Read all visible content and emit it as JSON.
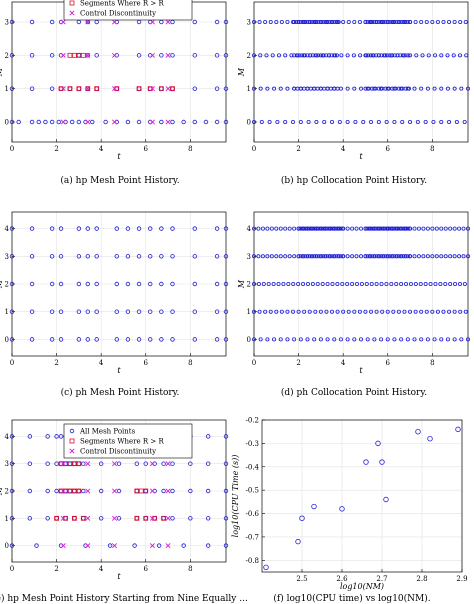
{
  "legend_labels": {
    "all_mesh": "All Mesh Points",
    "segments": "Segments Where R > R",
    "control": "Control Discontinuity"
  },
  "captions": {
    "a": "(a) hp Mesh Point History.",
    "b": "(b) hp Collocation Point History.",
    "c": "(c) ph Mesh Point History.",
    "d": "(d) ph Collocation Point History.",
    "e": "(e) hp Mesh Point History Starting from Nine Equally ...",
    "f": "(f) log10(CPU time) vs log10(NM)."
  },
  "colors": {
    "mesh": "#1f1fd6",
    "segment": "#e0102e",
    "control": "#d01ad0"
  },
  "chart_data": [
    {
      "id": "a",
      "type": "scatter",
      "xlabel": "t",
      "ylabel": "M",
      "xlim": [
        0,
        9.6
      ],
      "ylim": [
        -0.6,
        3.6
      ],
      "xticks": [
        0,
        2,
        4,
        6,
        8
      ],
      "yticks": [
        0,
        1,
        2,
        3
      ],
      "mesh": [
        [
          0.0,
          0.3,
          0.9,
          1.2,
          1.5,
          1.8,
          2.1,
          2.4,
          2.7,
          3.0,
          3.3,
          3.6,
          4.2,
          4.7,
          5.2,
          5.7,
          6.2,
          6.7,
          7.2,
          7.7,
          8.2,
          8.7,
          9.2,
          9.6
        ],
        [
          0.0,
          0.9,
          1.8,
          2.2,
          2.6,
          3.0,
          3.4,
          3.8,
          4.7,
          5.7,
          6.2,
          6.7,
          7.2,
          8.2,
          9.2,
          9.6
        ],
        [
          0.0,
          0.9,
          1.8,
          2.2,
          3.0,
          3.4,
          3.8,
          4.7,
          5.7,
          6.2,
          6.7,
          7.2,
          8.2,
          9.2,
          9.6
        ],
        [
          0.0,
          0.9,
          1.8,
          2.2,
          3.0,
          3.4,
          3.8,
          4.7,
          5.7,
          6.2,
          6.7,
          7.2,
          8.2,
          9.2,
          9.6
        ]
      ],
      "segments": [
        [],
        [
          2.2,
          2.6,
          3.0,
          3.4,
          3.8,
          4.7,
          5.7,
          6.2,
          6.7,
          7.2
        ],
        [
          2.6,
          2.8,
          3.0,
          3.2
        ],
        []
      ],
      "control": [
        [
          2.3,
          3.4,
          4.6,
          6.3,
          7.0
        ],
        [
          2.3,
          3.4,
          4.6,
          6.3,
          7.0
        ],
        [
          2.3,
          3.4,
          4.6,
          6.3,
          7.0
        ],
        [
          2.3,
          3.4,
          4.6,
          6.3,
          7.0
        ]
      ]
    },
    {
      "id": "b",
      "type": "scatter",
      "xlabel": "t",
      "ylabel": "M",
      "xlim": [
        0,
        9.6
      ],
      "ylim": [
        -0.6,
        3.6
      ],
      "xticks": [
        0,
        2,
        4,
        6,
        8
      ],
      "yticks": [
        0,
        1,
        2,
        3
      ],
      "dense": [
        {
          "y": 0,
          "ranges": [
            [
              0,
              9.6,
              0.35
            ]
          ]
        },
        {
          "y": 1,
          "ranges": [
            [
              0,
              9.6,
              0.3
            ],
            [
              1.8,
              3.8,
              0.15
            ],
            [
              5.0,
              7.0,
              0.15
            ]
          ]
        },
        {
          "y": 2,
          "ranges": [
            [
              0,
              9.6,
              0.28
            ],
            [
              1.8,
              3.8,
              0.12
            ],
            [
              5.0,
              7.0,
              0.12
            ]
          ]
        },
        {
          "y": 3,
          "ranges": [
            [
              0,
              9.6,
              0.25
            ],
            [
              1.8,
              3.8,
              0.1
            ],
            [
              5.0,
              7.0,
              0.1
            ]
          ]
        }
      ]
    },
    {
      "id": "c",
      "type": "scatter",
      "xlabel": "t",
      "ylabel": "M",
      "xlim": [
        0,
        9.6
      ],
      "ylim": [
        -0.6,
        4.6
      ],
      "xticks": [
        0,
        2,
        4,
        6,
        8
      ],
      "yticks": [
        0,
        1,
        2,
        3,
        4
      ],
      "mesh": [
        [
          0,
          0.9,
          1.8,
          2.2,
          3.0,
          3.4,
          3.8,
          4.7,
          5.2,
          5.7,
          6.2,
          6.7,
          7.2,
          8.2,
          9.2,
          9.6
        ],
        [
          0,
          0.9,
          1.8,
          2.2,
          3.0,
          3.4,
          3.8,
          4.7,
          5.2,
          5.7,
          6.2,
          6.7,
          7.2,
          8.2,
          9.2,
          9.6
        ],
        [
          0,
          0.9,
          1.8,
          2.2,
          3.0,
          3.4,
          3.8,
          4.7,
          5.2,
          5.7,
          6.2,
          6.7,
          7.2,
          8.2,
          9.2,
          9.6
        ],
        [
          0,
          0.9,
          1.8,
          2.2,
          3.0,
          3.4,
          3.8,
          4.7,
          5.2,
          5.7,
          6.2,
          6.7,
          7.2,
          8.2,
          9.2,
          9.6
        ],
        [
          0,
          0.9,
          1.8,
          2.2,
          3.0,
          3.4,
          3.8,
          4.7,
          5.2,
          5.7,
          6.2,
          6.7,
          7.2,
          8.2,
          9.2,
          9.6
        ]
      ]
    },
    {
      "id": "d",
      "type": "scatter",
      "xlabel": "t",
      "ylabel": "M",
      "xlim": [
        0,
        9.6
      ],
      "ylim": [
        -0.6,
        4.6
      ],
      "xticks": [
        0,
        2,
        4,
        6,
        8
      ],
      "yticks": [
        0,
        1,
        2,
        3,
        4
      ],
      "dense": [
        {
          "y": 0,
          "ranges": [
            [
              0,
              9.6,
              0.3
            ]
          ]
        },
        {
          "y": 1,
          "ranges": [
            [
              0,
              9.6,
              0.25
            ]
          ]
        },
        {
          "y": 2,
          "ranges": [
            [
              0,
              9.6,
              0.22
            ]
          ]
        },
        {
          "y": 3,
          "ranges": [
            [
              0,
              9.6,
              0.2
            ],
            [
              2.0,
              4.0,
              0.1
            ],
            [
              5.0,
              7.0,
              0.1
            ]
          ]
        },
        {
          "y": 4,
          "ranges": [
            [
              0,
              9.6,
              0.2
            ],
            [
              2.0,
              4.0,
              0.08
            ],
            [
              5.0,
              7.0,
              0.08
            ]
          ]
        }
      ]
    },
    {
      "id": "e",
      "type": "scatter",
      "xlabel": "t",
      "ylabel": "M",
      "xlim": [
        0,
        9.6
      ],
      "ylim": [
        -0.6,
        4.6
      ],
      "xticks": [
        0,
        2,
        4,
        6,
        8
      ],
      "yticks": [
        0,
        1,
        2,
        3,
        4
      ],
      "mesh": [
        [
          0,
          1.1,
          2.2,
          3.3,
          4.4,
          5.5,
          6.6,
          7.7,
          8.8,
          9.6
        ],
        [
          0,
          0.8,
          1.6,
          2.0,
          2.4,
          2.8,
          3.2,
          4.0,
          4.8,
          5.6,
          6.0,
          6.4,
          6.8,
          7.2,
          8.0,
          8.8,
          9.6
        ],
        [
          0,
          0.8,
          1.6,
          2.0,
          2.2,
          2.4,
          2.6,
          2.8,
          3.0,
          3.2,
          4.0,
          4.8,
          5.6,
          6.0,
          6.4,
          6.8,
          7.2,
          8.0,
          8.8,
          9.6
        ],
        [
          0,
          0.8,
          1.6,
          2.0,
          2.2,
          2.4,
          2.6,
          2.8,
          3.0,
          3.2,
          4.0,
          4.8,
          5.6,
          6.0,
          6.4,
          6.8,
          7.2,
          8.0,
          8.8,
          9.6
        ],
        [
          0,
          0.8,
          1.6,
          2.0,
          2.2,
          2.4,
          2.6,
          2.8,
          3.0,
          3.2,
          3.4,
          4.0,
          4.8,
          5.6,
          6.0,
          6.4,
          6.8,
          7.2,
          8.0,
          8.8,
          9.6
        ]
      ],
      "segments": [
        [],
        [
          2.0,
          2.4,
          2.8,
          3.2,
          5.6,
          6.0,
          6.4,
          6.8
        ],
        [
          2.2,
          2.4,
          2.6,
          2.8,
          3.0,
          5.6,
          5.8,
          6.0
        ],
        [
          2.2,
          2.4,
          2.6,
          2.8,
          3.0
        ],
        []
      ],
      "control": [
        [
          2.3,
          3.4,
          4.6,
          6.3,
          7.0
        ],
        [
          2.3,
          3.4,
          4.6,
          6.3,
          7.0
        ],
        [
          2.3,
          3.4,
          4.6,
          6.3,
          7.0
        ],
        [
          2.3,
          3.4,
          4.6,
          6.3,
          7.0
        ],
        []
      ]
    },
    {
      "id": "f",
      "type": "scatter",
      "xlabel": "log10(NM)",
      "ylabel": "log10(CPU Time (s))",
      "xlim": [
        2.4,
        2.9
      ],
      "ylim": [
        -0.85,
        -0.2
      ],
      "xticks": [
        2.5,
        2.6,
        2.7,
        2.8,
        2.9
      ],
      "yticks": [
        -0.8,
        -0.7,
        -0.6,
        -0.5,
        -0.4,
        -0.3,
        -0.2
      ],
      "points": [
        [
          2.41,
          -0.83
        ],
        [
          2.49,
          -0.72
        ],
        [
          2.5,
          -0.62
        ],
        [
          2.53,
          -0.57
        ],
        [
          2.6,
          -0.58
        ],
        [
          2.66,
          -0.38
        ],
        [
          2.69,
          -0.3
        ],
        [
          2.7,
          -0.38
        ],
        [
          2.71,
          -0.54
        ],
        [
          2.79,
          -0.25
        ],
        [
          2.82,
          -0.28
        ],
        [
          2.89,
          -0.24
        ]
      ]
    }
  ]
}
